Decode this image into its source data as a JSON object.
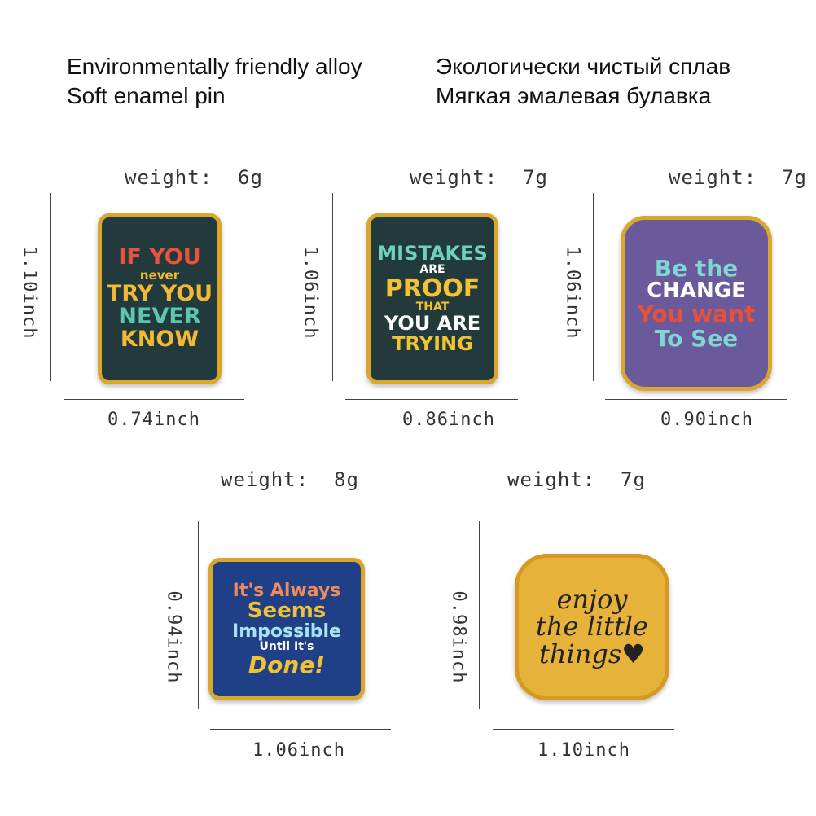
{
  "header": {
    "en_line1": "Environmentally friendly alloy",
    "en_line2": "Soft enamel pin",
    "ru_line1": "Экологически чистый сплав",
    "ru_line2": "Мягкая эмалевая булавка"
  },
  "pins": [
    {
      "weight": "weight:  6g",
      "height": "1.10inch",
      "width": "0.74inch",
      "text": [
        "IF YOU",
        "never",
        "TRY YOU",
        "NEVER",
        "KNOW"
      ],
      "colors": [
        "#e9533d",
        "#f2b934",
        "#f2b934",
        "#5cc7b0",
        "#f2b934"
      ]
    },
    {
      "weight": "weight:  7g",
      "height": "1.06inch",
      "width": "0.86inch",
      "text": [
        "MISTAKES",
        "ARE",
        "PROOF",
        "THAT",
        "YOU ARE",
        "TRYING"
      ],
      "colors": [
        "#6fd0bc",
        "#ffffff",
        "#f2c235",
        "#f2c235",
        "#ffffff",
        "#f2c235"
      ]
    },
    {
      "weight": "weight:  7g",
      "height": "1.06inch",
      "width": "0.90inch",
      "text": [
        "Be the",
        "CHANGE",
        "You want",
        "To See"
      ],
      "colors": [
        "#7fd6d2",
        "#ffffff",
        "#e8503a",
        "#7fd6d2"
      ]
    },
    {
      "weight": "weight:  8g",
      "height": "0.94inch",
      "width": "1.06inch",
      "text": [
        "It's Always",
        "Seems",
        "Impossible",
        "Until It's",
        "Done!"
      ],
      "colors": [
        "#f08a5d",
        "#f2c235",
        "#a8e3f0",
        "#ffffff",
        "#f2c235"
      ]
    },
    {
      "weight": "weight:  7g",
      "height": "0.98inch",
      "width": "1.10inch",
      "text": [
        "enjoy",
        "the little",
        "things♥"
      ],
      "colors": [
        "#222222",
        "#222222",
        "#222222"
      ]
    }
  ]
}
